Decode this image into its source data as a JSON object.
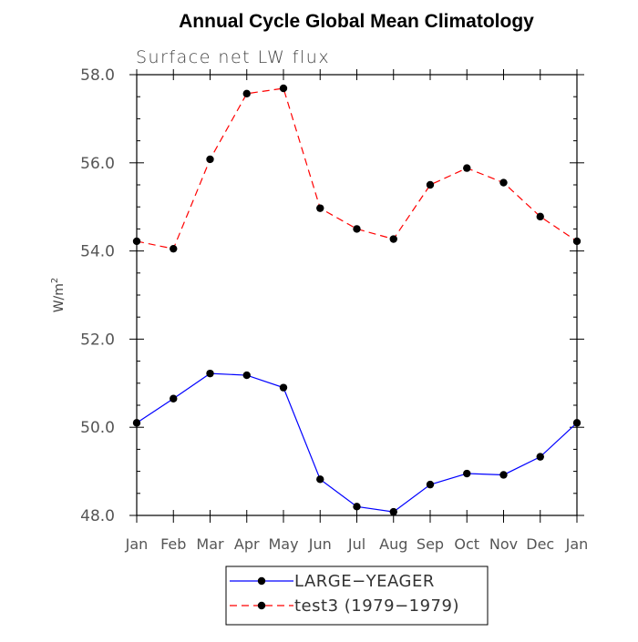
{
  "chart_data": {
    "type": "line",
    "title": "Annual Cycle Global Mean Climatology",
    "subtitle": "Surface net LW flux",
    "ylabel": "W/m",
    "ylabel_sup": "2",
    "xlabel": "",
    "ylim": [
      48.0,
      58.0
    ],
    "yticks": [
      "48.0",
      "50.0",
      "52.0",
      "54.0",
      "56.0",
      "58.0"
    ],
    "categories": [
      "Jan",
      "Feb",
      "Mar",
      "Apr",
      "May",
      "Jun",
      "Jul",
      "Aug",
      "Sep",
      "Oct",
      "Nov",
      "Dec",
      "Jan"
    ],
    "series": [
      {
        "name": "LARGE−YEAGER",
        "color": "#0000ff",
        "line_style": "solid",
        "values": [
          50.1,
          50.65,
          51.22,
          51.18,
          50.9,
          48.82,
          48.2,
          48.08,
          48.7,
          48.95,
          48.92,
          49.33,
          50.1
        ]
      },
      {
        "name": "test3 (1979−1979)",
        "color": "#ff0000",
        "line_style": "dashed",
        "values": [
          54.22,
          54.05,
          56.08,
          57.57,
          57.69,
          54.97,
          54.5,
          54.27,
          55.5,
          55.88,
          55.55,
          54.78,
          54.22
        ]
      }
    ],
    "grid": false,
    "legend_position": "bottom"
  }
}
